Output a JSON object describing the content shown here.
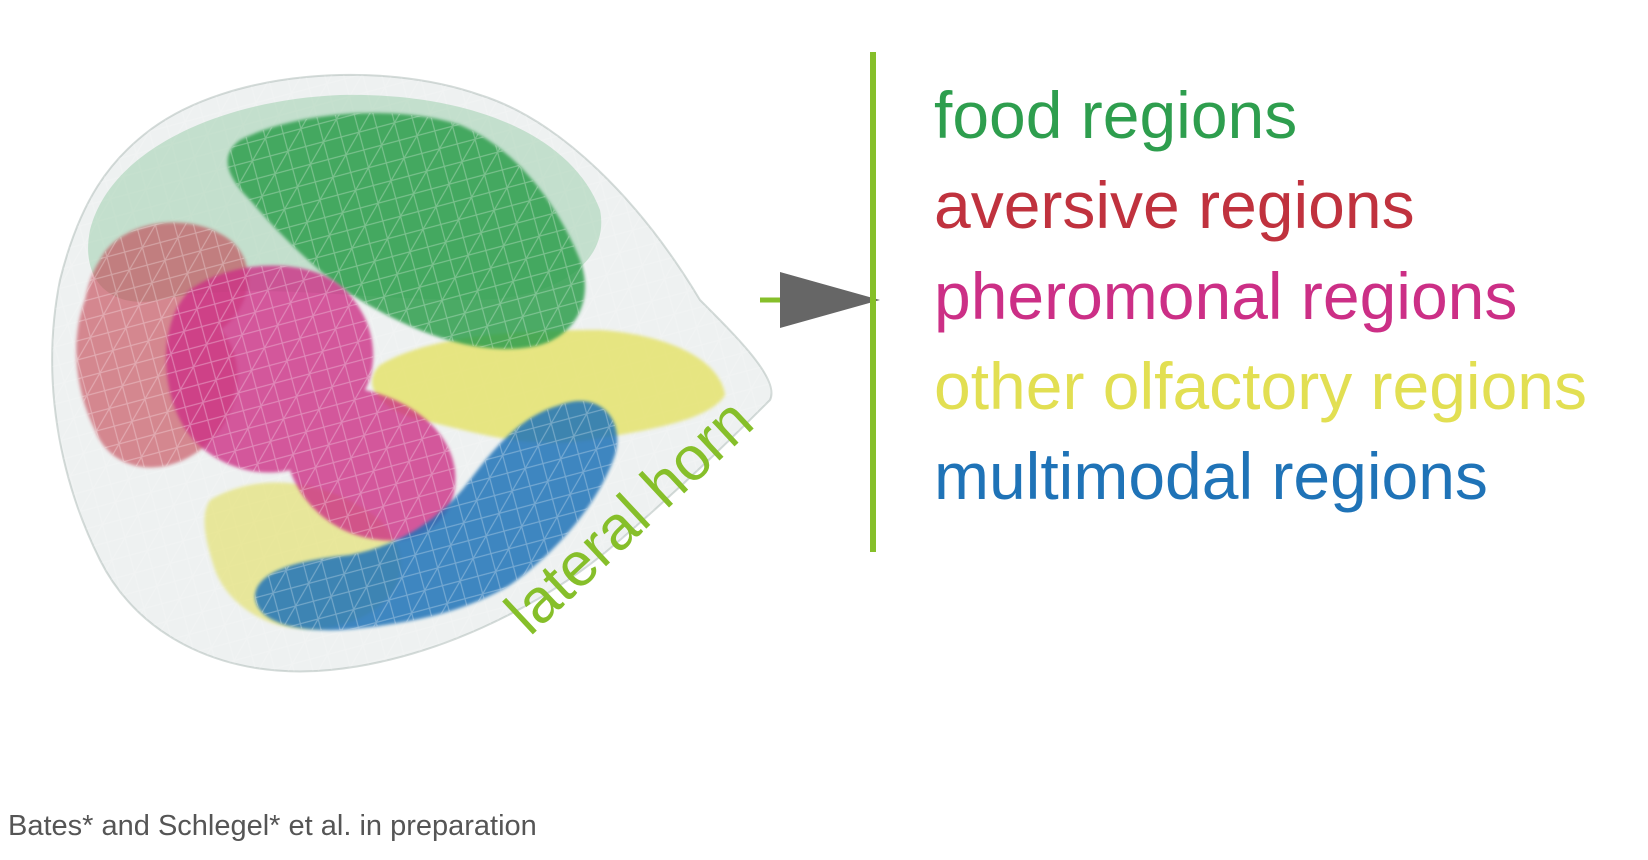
{
  "colors": {
    "food": "#2e9e4e",
    "aversive": "#c0323e",
    "pheromonal": "#cc2f86",
    "other_olfactory": "#e2df52",
    "multimodal": "#1f73b7",
    "lateral_horn": "#86bf2a",
    "arrow": "#666666",
    "citation": "#555555"
  },
  "diagram": {
    "structure_label": "lateral horn",
    "regions": [
      {
        "label": "food regions",
        "color": "#2e9e4e"
      },
      {
        "label": "aversive regions",
        "color": "#c0323e"
      },
      {
        "label": "pheromonal regions",
        "color": "#cc2f86"
      },
      {
        "label": "other olfactory regions",
        "color": "#e2df52"
      },
      {
        "label": "multimodal regions",
        "color": "#1f73b7"
      }
    ]
  },
  "citation": "Bates* and Schlegel* et al. in preparation"
}
